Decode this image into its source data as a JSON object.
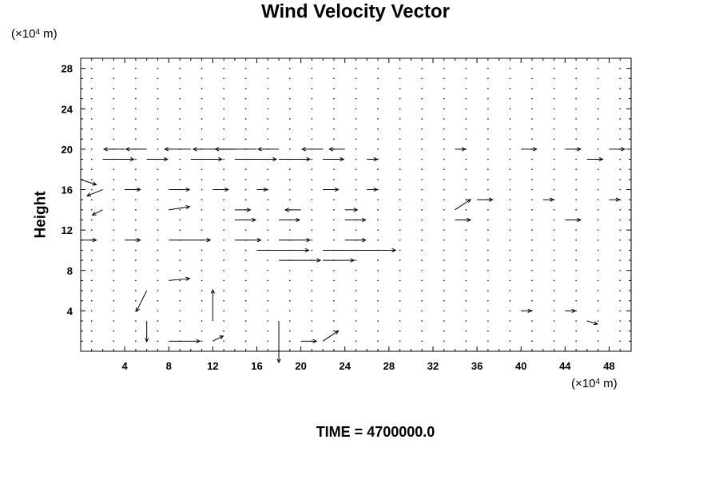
{
  "chart_data": {
    "type": "vector-field",
    "title": "Wind Velocity Vector",
    "ylabel": "Height",
    "xlabel": "",
    "x_unit": {
      "prefix": "(×10",
      "exp": "4",
      "suffix": " m)"
    },
    "y_unit": {
      "prefix": "(×10",
      "exp": "4",
      "suffix": " m)"
    },
    "caption": "TIME = 4700000.0",
    "xlim": [
      0,
      50
    ],
    "ylim": [
      0,
      29
    ],
    "x_ticks": [
      4,
      8,
      12,
      16,
      20,
      24,
      28,
      32,
      36,
      40,
      44,
      48
    ],
    "y_ticks": [
      4,
      8,
      12,
      16,
      20,
      24,
      28
    ],
    "grid": {
      "dx": 2,
      "dy": 1,
      "x_start": 0,
      "y_start": 0
    },
    "vectors": [
      {
        "x": 4,
        "y": 20,
        "u": -2,
        "v": 0
      },
      {
        "x": 6,
        "y": 20,
        "u": -2,
        "v": 0
      },
      {
        "x": 10,
        "y": 20,
        "u": -2.5,
        "v": 0
      },
      {
        "x": 14,
        "y": 20,
        "u": -4,
        "v": 0
      },
      {
        "x": 16,
        "y": 20,
        "u": -4,
        "v": 0
      },
      {
        "x": 18,
        "y": 20,
        "u": -2,
        "v": 0
      },
      {
        "x": 22,
        "y": 20,
        "u": -2,
        "v": 0
      },
      {
        "x": 24,
        "y": 20,
        "u": -1.5,
        "v": 0
      },
      {
        "x": 34,
        "y": 20,
        "u": 1,
        "v": 0
      },
      {
        "x": 40,
        "y": 20,
        "u": 1.5,
        "v": 0
      },
      {
        "x": 44,
        "y": 20,
        "u": 1.5,
        "v": 0
      },
      {
        "x": 48,
        "y": 20,
        "u": 1.5,
        "v": 0
      },
      {
        "x": 2,
        "y": 19,
        "u": 3,
        "v": 0
      },
      {
        "x": 6,
        "y": 19,
        "u": 2,
        "v": 0
      },
      {
        "x": 10,
        "y": 19,
        "u": 3,
        "v": 0
      },
      {
        "x": 14,
        "y": 19,
        "u": 4,
        "v": 0
      },
      {
        "x": 18,
        "y": 19,
        "u": 3,
        "v": 0
      },
      {
        "x": 22,
        "y": 19,
        "u": 2,
        "v": 0
      },
      {
        "x": 26,
        "y": 19,
        "u": 1,
        "v": 0
      },
      {
        "x": 46,
        "y": 19,
        "u": 1.5,
        "v": 0
      },
      {
        "x": 0,
        "y": 17,
        "u": 1.5,
        "v": -0.5
      },
      {
        "x": 2,
        "y": 16,
        "u": -1.5,
        "v": -0.6
      },
      {
        "x": 4,
        "y": 16,
        "u": 1.5,
        "v": 0
      },
      {
        "x": 8,
        "y": 16,
        "u": 2,
        "v": 0
      },
      {
        "x": 12,
        "y": 16,
        "u": 1.5,
        "v": 0
      },
      {
        "x": 16,
        "y": 16,
        "u": 1,
        "v": 0
      },
      {
        "x": 22,
        "y": 16,
        "u": 1.5,
        "v": 0
      },
      {
        "x": 26,
        "y": 16,
        "u": 1,
        "v": 0
      },
      {
        "x": 36,
        "y": 15,
        "u": 1.5,
        "v": 0
      },
      {
        "x": 42,
        "y": 15,
        "u": 1,
        "v": 0
      },
      {
        "x": 48,
        "y": 15,
        "u": 1,
        "v": 0
      },
      {
        "x": 2,
        "y": 14,
        "u": -1,
        "v": -0.5
      },
      {
        "x": 8,
        "y": 14,
        "u": 2,
        "v": 0.3
      },
      {
        "x": 14,
        "y": 14,
        "u": 1.5,
        "v": 0
      },
      {
        "x": 20,
        "y": 14,
        "u": -1.5,
        "v": 0
      },
      {
        "x": 24,
        "y": 14,
        "u": 1.2,
        "v": 0
      },
      {
        "x": 34,
        "y": 14,
        "u": 1.5,
        "v": 1
      },
      {
        "x": 14,
        "y": 13,
        "u": 2,
        "v": 0
      },
      {
        "x": 18,
        "y": 13,
        "u": 2,
        "v": 0
      },
      {
        "x": 24,
        "y": 13,
        "u": 2,
        "v": 0
      },
      {
        "x": 34,
        "y": 13,
        "u": 1.5,
        "v": 0
      },
      {
        "x": 44,
        "y": 13,
        "u": 1.5,
        "v": 0
      },
      {
        "x": 0,
        "y": 11,
        "u": 1.5,
        "v": 0
      },
      {
        "x": 4,
        "y": 11,
        "u": 1.5,
        "v": 0
      },
      {
        "x": 8,
        "y": 11,
        "u": 4,
        "v": 0
      },
      {
        "x": 14,
        "y": 11,
        "u": 2.5,
        "v": 0
      },
      {
        "x": 18,
        "y": 11,
        "u": 3,
        "v": 0
      },
      {
        "x": 24,
        "y": 11,
        "u": 2,
        "v": 0
      },
      {
        "x": 16,
        "y": 10,
        "u": 5,
        "v": 0
      },
      {
        "x": 22,
        "y": 10,
        "u": 7,
        "v": 0
      },
      {
        "x": 18,
        "y": 9,
        "u": 4,
        "v": 0
      },
      {
        "x": 22,
        "y": 9,
        "u": 3,
        "v": 0
      },
      {
        "x": 8,
        "y": 7,
        "u": 2,
        "v": 0.2
      },
      {
        "x": 6,
        "y": 6,
        "u": -1,
        "v": -2
      },
      {
        "x": 6,
        "y": 3,
        "u": 0,
        "v": -2
      },
      {
        "x": 12,
        "y": 3,
        "u": 0,
        "v": 3
      },
      {
        "x": 18,
        "y": 3,
        "u": 0,
        "v": -4
      },
      {
        "x": 8,
        "y": 1,
        "u": 3,
        "v": 0
      },
      {
        "x": 12,
        "y": 1,
        "u": 1,
        "v": 0.5
      },
      {
        "x": 20,
        "y": 1,
        "u": 1.5,
        "v": 0
      },
      {
        "x": 22,
        "y": 1,
        "u": 1.5,
        "v": 1
      },
      {
        "x": 40,
        "y": 4,
        "u": 1,
        "v": 0
      },
      {
        "x": 44,
        "y": 4,
        "u": 1,
        "v": 0
      },
      {
        "x": 46,
        "y": 3,
        "u": 1,
        "v": -0.3
      }
    ]
  }
}
